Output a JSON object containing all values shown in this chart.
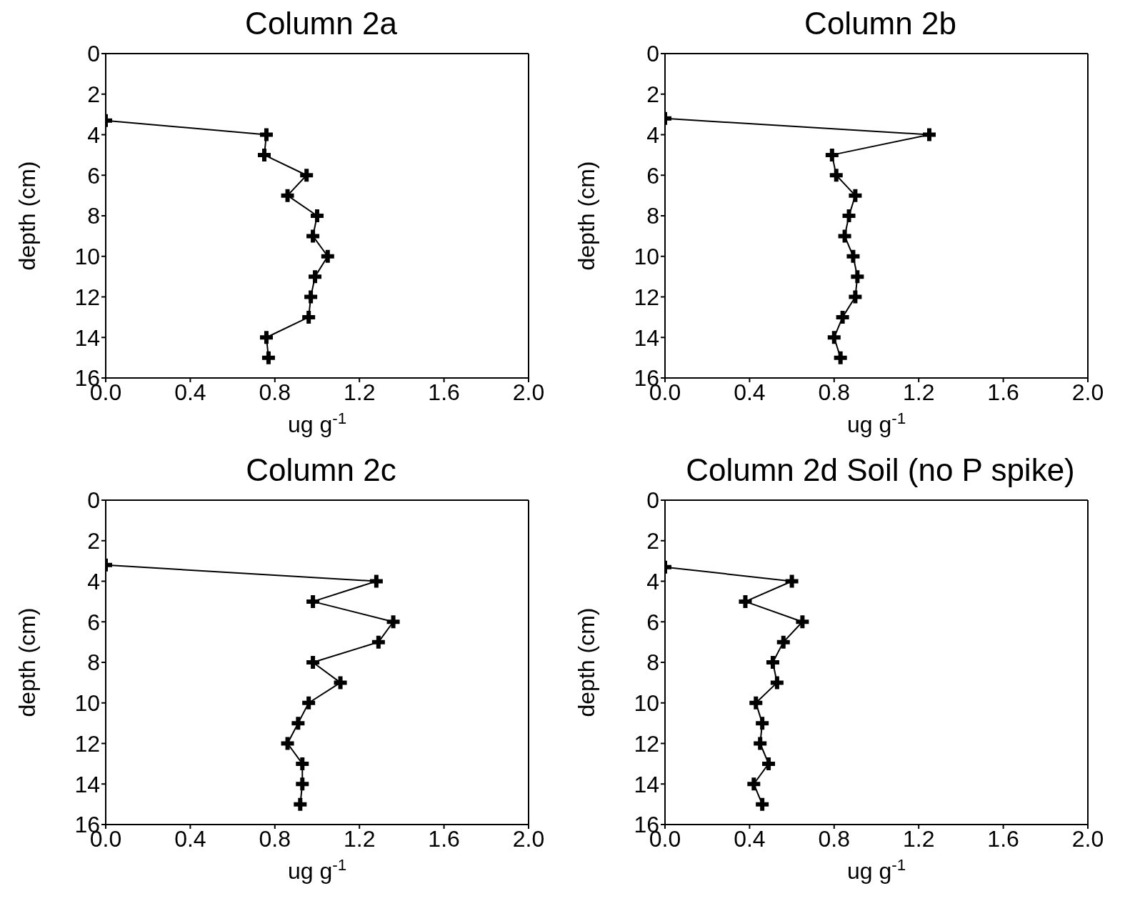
{
  "chart_data": [
    {
      "type": "line",
      "title": "Column 2a",
      "xlabel": "ug g$^{-1}$",
      "ylabel": "depth (cm)",
      "marker": "cross",
      "color": "#000000",
      "x": [
        0,
        0.76,
        0.75,
        0.95,
        0.86,
        1.0,
        0.98,
        1.05,
        0.99,
        0.97,
        0.96,
        0.76,
        0.77
      ],
      "values": [
        3.3,
        4,
        5,
        6,
        7,
        8,
        9,
        10,
        11,
        12,
        13,
        14,
        15
      ],
      "xlim": [
        0,
        2
      ],
      "xticks": [
        {
          "value": 0,
          "label": "0.0"
        },
        {
          "value": 0.4,
          "label": "0.4"
        },
        {
          "value": 0.8,
          "label": "0.8"
        },
        {
          "value": 1.2,
          "label": "1.2"
        },
        {
          "value": 1.6,
          "label": "1.6"
        },
        {
          "value": 2,
          "label": "2.0"
        }
      ],
      "ylim": [
        16,
        0
      ],
      "yticks": [
        0,
        2,
        4,
        6,
        8,
        10,
        12,
        14,
        16
      ]
    },
    {
      "type": "line",
      "title": "Column 2b",
      "xlabel": "ug g$^{-1}$",
      "ylabel": "depth (cm)",
      "marker": "cross",
      "color": "#000000",
      "x": [
        0,
        1.25,
        0.79,
        0.81,
        0.9,
        0.87,
        0.85,
        0.89,
        0.91,
        0.9,
        0.84,
        0.8,
        0.83
      ],
      "values": [
        3.2,
        4,
        5,
        6,
        7,
        8,
        9,
        10,
        11,
        12,
        13,
        14,
        15
      ],
      "xlim": [
        0,
        2
      ],
      "xticks": [
        {
          "value": 0,
          "label": "0.0"
        },
        {
          "value": 0.4,
          "label": "0.4"
        },
        {
          "value": 0.8,
          "label": "0.8"
        },
        {
          "value": 1.2,
          "label": "1.2"
        },
        {
          "value": 1.6,
          "label": "1.6"
        },
        {
          "value": 2,
          "label": "2.0"
        }
      ],
      "ylim": [
        16,
        0
      ],
      "yticks": [
        0,
        2,
        4,
        6,
        8,
        10,
        12,
        14,
        16
      ]
    },
    {
      "type": "line",
      "title": "Column 2c",
      "xlabel": "ug g$^{-1}$",
      "ylabel": "depth (cm)",
      "marker": "cross",
      "color": "#000000",
      "x": [
        0,
        1.28,
        0.98,
        1.36,
        1.29,
        0.98,
        1.11,
        0.96,
        0.91,
        0.86,
        0.93,
        0.93,
        0.92
      ],
      "values": [
        3.2,
        4,
        5,
        6,
        7,
        8,
        9,
        10,
        11,
        12,
        13,
        14,
        15
      ],
      "xlim": [
        0,
        2
      ],
      "xticks": [
        {
          "value": 0,
          "label": "0.0"
        },
        {
          "value": 0.4,
          "label": "0.4"
        },
        {
          "value": 0.8,
          "label": "0.8"
        },
        {
          "value": 1.2,
          "label": "1.2"
        },
        {
          "value": 1.6,
          "label": "1.6"
        },
        {
          "value": 2,
          "label": "2.0"
        }
      ],
      "ylim": [
        16,
        0
      ],
      "yticks": [
        0,
        2,
        4,
        6,
        8,
        10,
        12,
        14,
        16
      ]
    },
    {
      "type": "line",
      "title": "Column 2d Soil (no P spike)",
      "xlabel": "ug g$^{-1}$",
      "ylabel": "depth (cm)",
      "marker": "cross",
      "color": "#000000",
      "x": [
        0,
        0.6,
        0.38,
        0.65,
        0.56,
        0.51,
        0.53,
        0.43,
        0.46,
        0.45,
        0.49,
        0.42,
        0.46
      ],
      "values": [
        3.3,
        4,
        5,
        6,
        7,
        8,
        9,
        10,
        11,
        12,
        13,
        14,
        15
      ],
      "xlim": [
        0,
        2
      ],
      "xticks": [
        {
          "value": 0,
          "label": "0.0"
        },
        {
          "value": 0.4,
          "label": "0.4"
        },
        {
          "value": 0.8,
          "label": "0.8"
        },
        {
          "value": 1.2,
          "label": "1.2"
        },
        {
          "value": 1.6,
          "label": "1.6"
        },
        {
          "value": 2,
          "label": "2.0"
        }
      ],
      "ylim": [
        16,
        0
      ],
      "yticks": [
        0,
        2,
        4,
        6,
        8,
        10,
        12,
        14,
        16
      ]
    }
  ]
}
